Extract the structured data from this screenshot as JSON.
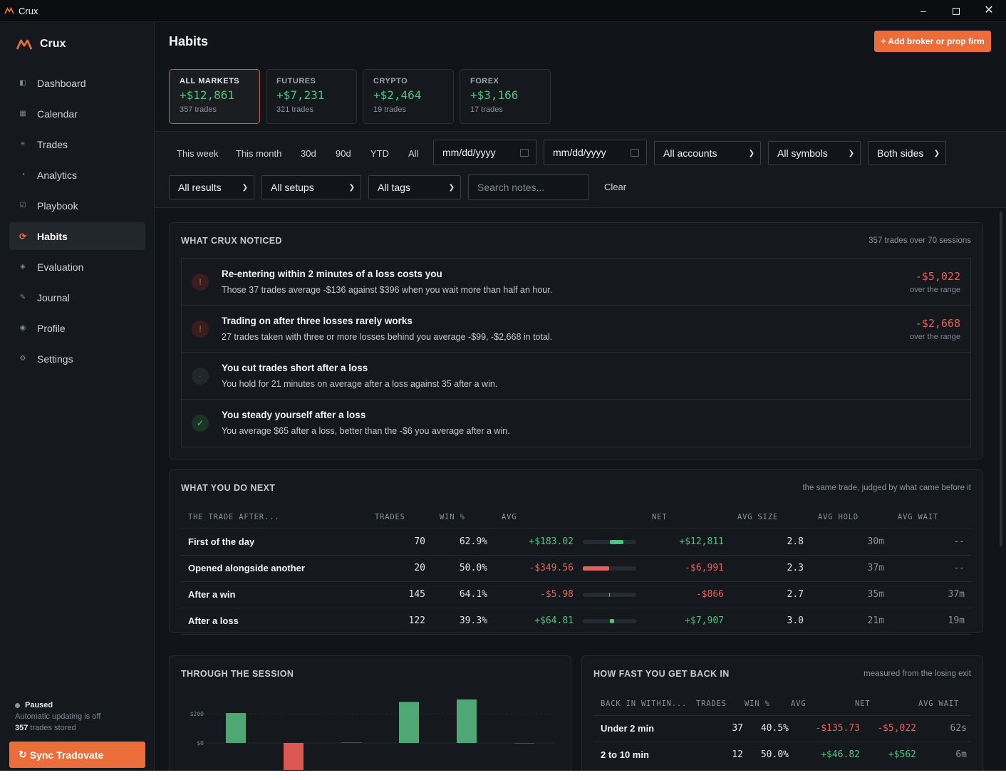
{
  "window": {
    "title": "Crux"
  },
  "brand": {
    "name": "Crux"
  },
  "nav": [
    {
      "label": "Dashboard",
      "icon": "dashboard-icon"
    },
    {
      "label": "Calendar",
      "icon": "calendar-icon"
    },
    {
      "label": "Trades",
      "icon": "list-icon"
    },
    {
      "label": "Analytics",
      "icon": "pie-icon"
    },
    {
      "label": "Playbook",
      "icon": "checkbox-icon"
    },
    {
      "label": "Habits",
      "icon": "refresh-icon",
      "active": true
    },
    {
      "label": "Evaluation",
      "icon": "diamond-icon"
    },
    {
      "label": "Journal",
      "icon": "pencil-icon"
    },
    {
      "label": "Profile",
      "icon": "profile-icon"
    },
    {
      "label": "Settings",
      "icon": "gear-icon"
    }
  ],
  "status": {
    "state": "Paused",
    "line": "Automatic updating is off",
    "count": "357",
    "count_suffix": "trades stored",
    "sync_label": "Sync Tradovate"
  },
  "header": {
    "title": "Habits",
    "add_label": "+ Add broker or prop firm"
  },
  "markets": [
    {
      "label": "ALL MARKETS",
      "value": "+$12,861",
      "trades": "357 trades",
      "active": true
    },
    {
      "label": "FUTURES",
      "value": "+$7,231",
      "trades": "321 trades"
    },
    {
      "label": "CRYPTO",
      "value": "+$2,464",
      "trades": "19 trades"
    },
    {
      "label": "FOREX",
      "value": "+$3,166",
      "trades": "17 trades"
    }
  ],
  "filters": {
    "ranges": [
      "This week",
      "This month",
      "30d",
      "90d",
      "YTD",
      "All"
    ],
    "date_from": "mm/dd/yyyy",
    "date_to": "mm/dd/yyyy",
    "accounts": "All accounts",
    "symbols": "All symbols",
    "sides": "Both sides",
    "results": "All results",
    "setups": "All setups",
    "tags": "All tags",
    "search_placeholder": "Search notes...",
    "clear": "Clear"
  },
  "noticed": {
    "title": "WHAT CRUX NOTICED",
    "subtitle": "357 trades over 70 sessions",
    "items": [
      {
        "kind": "bad",
        "icon": "!",
        "title": "Re-entering within 2 minutes of a loss costs you",
        "desc": "Those 37 trades average -$136 against $396 when you wait more than half an hour.",
        "value": "-$5,022",
        "value_sub": "over the range"
      },
      {
        "kind": "bad",
        "icon": "!",
        "title": "Trading on after three losses rarely works",
        "desc": "27 trades taken with three or more losses behind you average -$99, -$2,668 in total.",
        "value": "-$2,668",
        "value_sub": "over the range"
      },
      {
        "kind": "neu",
        "icon": "·",
        "title": "You cut trades short after a loss",
        "desc": "You hold for 21 minutes on average after a loss against 35 after a win."
      },
      {
        "kind": "good",
        "icon": "✓",
        "title": "You steady yourself after a loss",
        "desc": "You average $65 after a loss, better than the -$6 you average after a win."
      }
    ]
  },
  "next": {
    "title": "WHAT YOU DO NEXT",
    "subtitle": "the same trade, judged by what came before it",
    "headers": {
      "trade_after": "THE TRADE AFTER...",
      "trades": "TRADES",
      "win": "WIN %",
      "avg": "AVG",
      "net": "NET",
      "avg_size": "AVG SIZE",
      "avg_hold": "AVG HOLD",
      "avg_wait": "AVG WAIT"
    },
    "rows": [
      {
        "label": "First of the day",
        "trades": "70",
        "win": "62.9%",
        "avg": "+$183.02",
        "avg_value": 183.02,
        "net": "+$12,811",
        "size": "2.8",
        "hold": "30m",
        "wait": "--"
      },
      {
        "label": "Opened alongside another",
        "trades": "20",
        "win": "50.0%",
        "avg": "-$349.56",
        "avg_value": -349.56,
        "net": "-$6,991",
        "size": "2.3",
        "hold": "37m",
        "wait": "--"
      },
      {
        "label": "After a win",
        "trades": "145",
        "win": "64.1%",
        "avg": "-$5.98",
        "avg_value": -5.98,
        "net": "-$866",
        "size": "2.7",
        "hold": "35m",
        "wait": "37m"
      },
      {
        "label": "After a loss",
        "trades": "122",
        "win": "39.3%",
        "avg": "+$64.81",
        "avg_value": 64.81,
        "net": "+$7,907",
        "size": "3.0",
        "hold": "21m",
        "wait": "19m"
      }
    ]
  },
  "session": {
    "title": "THROUGH THE SESSION"
  },
  "chart_data": {
    "type": "bar",
    "title": "THROUGH THE SESSION",
    "ytick_labels": [
      "$200",
      "$0"
    ],
    "yticks": [
      200,
      0
    ],
    "ylim": [
      -200,
      300
    ],
    "values": [
      205,
      -185,
      1,
      281,
      298,
      -4
    ],
    "grid": true
  },
  "fast": {
    "title": "HOW FAST YOU GET BACK IN",
    "subtitle": "measured from the losing exit",
    "headers": {
      "back": "BACK IN WITHIN...",
      "trades": "TRADES",
      "win": "WIN %",
      "avg": "AVG",
      "net": "NET",
      "wait": "AVG WAIT"
    },
    "rows": [
      {
        "label": "Under 2 min",
        "trades": "37",
        "win": "40.5%",
        "avg": "-$135.73",
        "net": "-$5,022",
        "wait": "62s"
      },
      {
        "label": "2 to 10 min",
        "trades": "12",
        "win": "50.0%",
        "avg": "+$46.82",
        "net": "+$562",
        "wait": "6m"
      }
    ]
  },
  "colors": {
    "accent": "#ea6d3a",
    "positive": "#4fc27e",
    "negative": "#e2625a",
    "bg": "#111418",
    "panel": "#15181d"
  }
}
